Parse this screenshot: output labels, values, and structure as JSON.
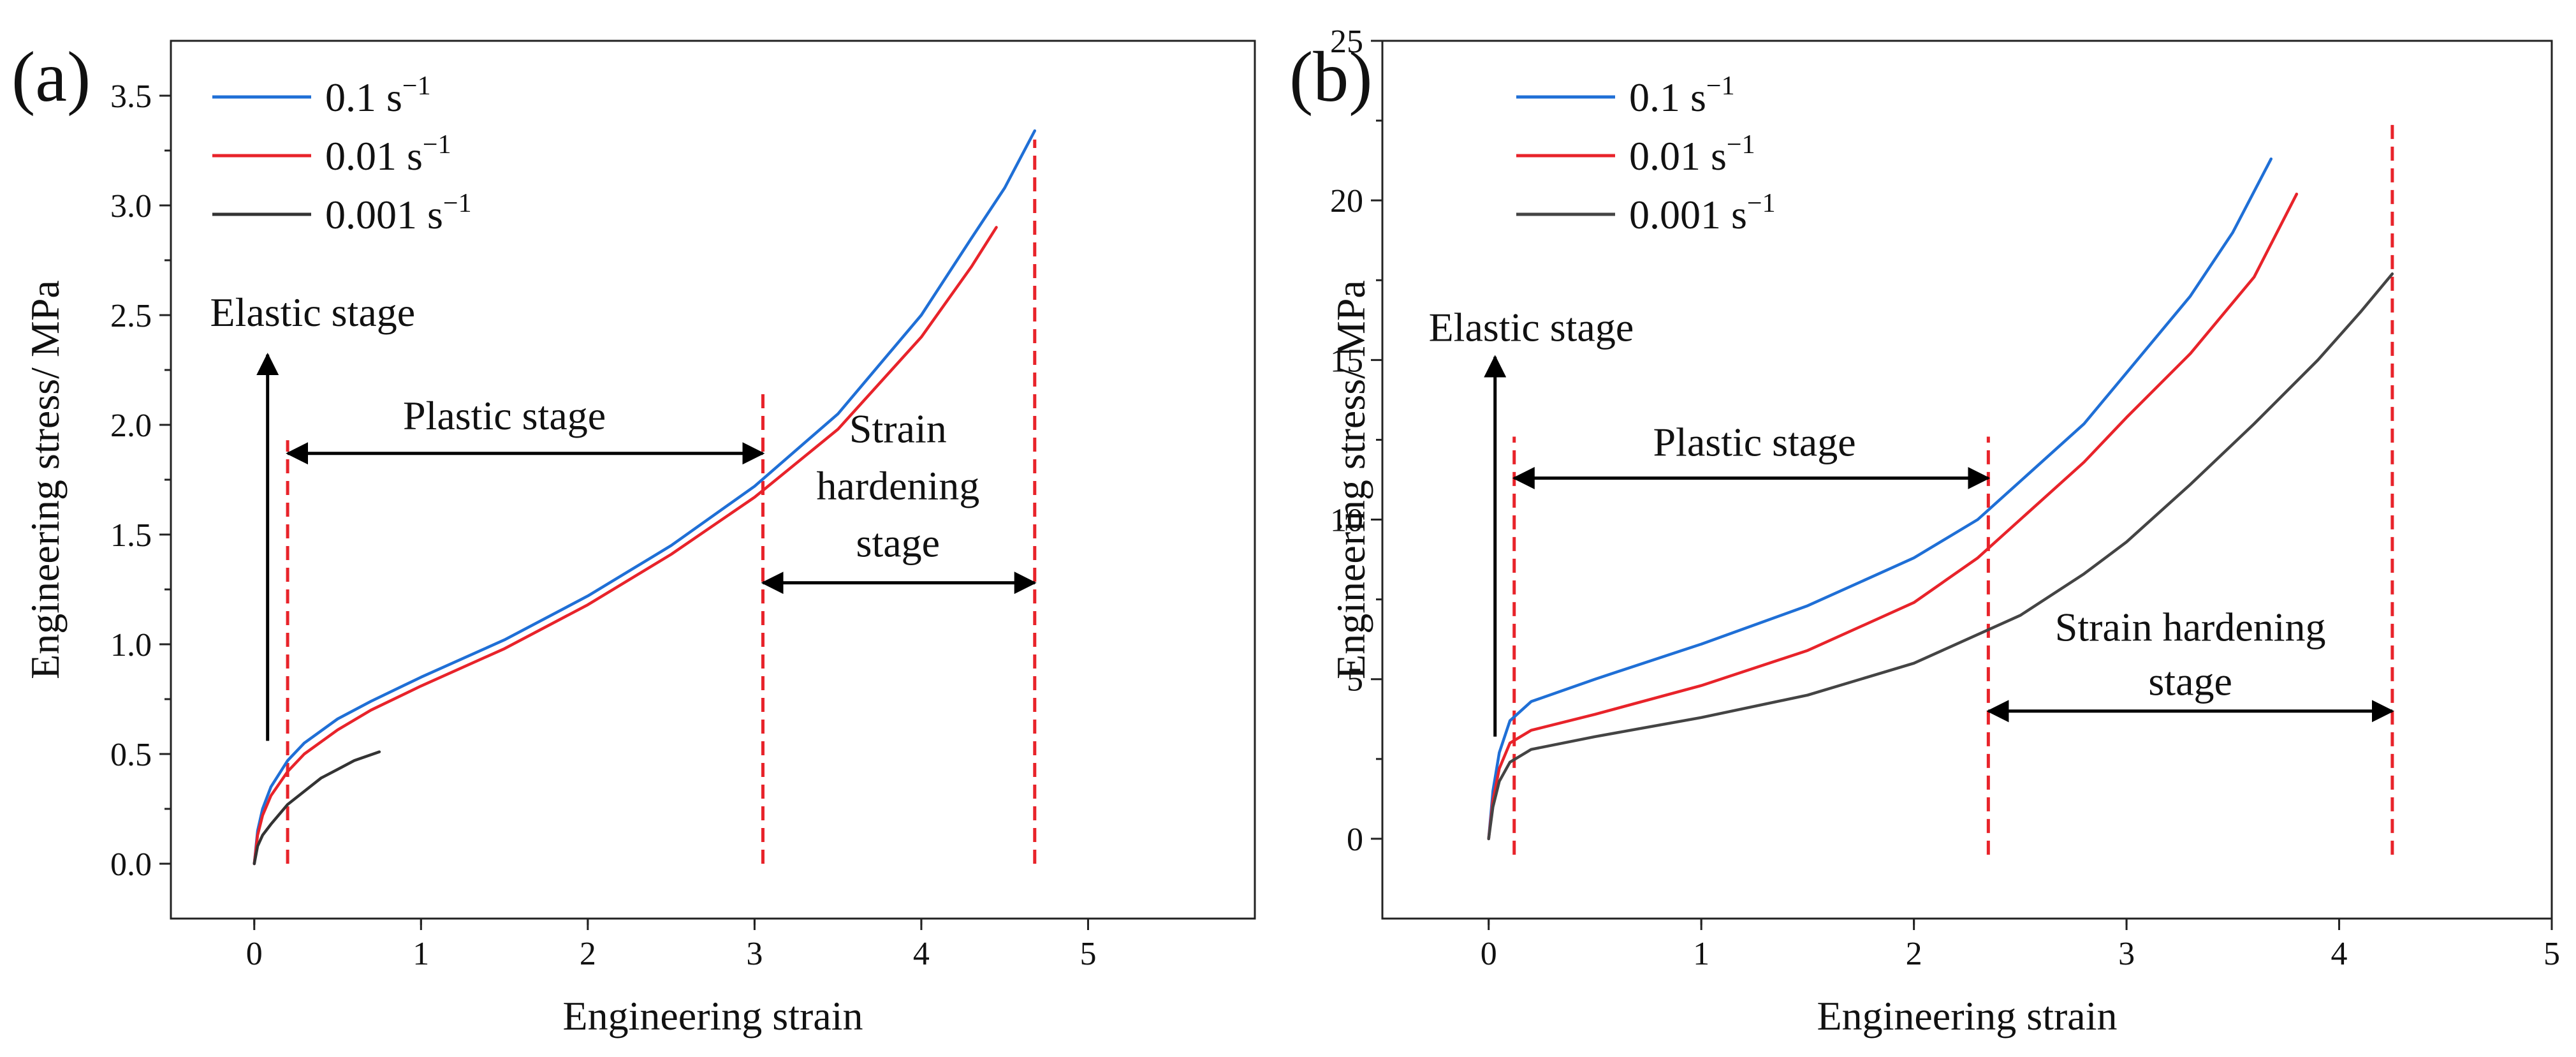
{
  "chart_data": [
    {
      "type": "line",
      "panel_label": "(a)",
      "xlabel": "Engineering strain",
      "ylabel": "Engineering stress/ MPa",
      "xlim": [
        -0.5,
        6
      ],
      "ylim": [
        -0.25,
        3.75
      ],
      "xticks": [
        0,
        1,
        2,
        3,
        4,
        5
      ],
      "xtick_labels": [
        "0",
        "1",
        "2",
        "3",
        "4",
        "5"
      ],
      "yticks": [
        0.0,
        0.5,
        1.0,
        1.5,
        2.0,
        2.5,
        3.0,
        3.5
      ],
      "ytick_labels": [
        "0.0",
        "0.5",
        "1.0",
        "1.5",
        "2.0",
        "2.5",
        "3.0",
        "3.5"
      ],
      "legend_position": "top-left",
      "series": [
        {
          "name": "0.1 s",
          "name_sup": "−1",
          "color": "#1f6fd6",
          "points": [
            [
              0,
              0
            ],
            [
              0.02,
              0.15
            ],
            [
              0.05,
              0.25
            ],
            [
              0.1,
              0.35
            ],
            [
              0.2,
              0.47
            ],
            [
              0.3,
              0.55
            ],
            [
              0.5,
              0.66
            ],
            [
              0.7,
              0.74
            ],
            [
              1.0,
              0.85
            ],
            [
              1.5,
              1.02
            ],
            [
              2.0,
              1.22
            ],
            [
              2.5,
              1.45
            ],
            [
              3.0,
              1.72
            ],
            [
              3.5,
              2.05
            ],
            [
              4.0,
              2.5
            ],
            [
              4.3,
              2.85
            ],
            [
              4.5,
              3.08
            ],
            [
              4.68,
              3.34
            ]
          ]
        },
        {
          "name": "0.01 s",
          "name_sup": "−1",
          "color": "#e8232a",
          "points": [
            [
              0,
              0
            ],
            [
              0.02,
              0.13
            ],
            [
              0.05,
              0.22
            ],
            [
              0.1,
              0.31
            ],
            [
              0.2,
              0.42
            ],
            [
              0.3,
              0.5
            ],
            [
              0.5,
              0.61
            ],
            [
              0.7,
              0.7
            ],
            [
              1.0,
              0.81
            ],
            [
              1.5,
              0.98
            ],
            [
              2.0,
              1.18
            ],
            [
              2.5,
              1.41
            ],
            [
              3.0,
              1.67
            ],
            [
              3.5,
              1.98
            ],
            [
              4.0,
              2.4
            ],
            [
              4.3,
              2.72
            ],
            [
              4.45,
              2.9
            ]
          ]
        },
        {
          "name": "0.001 s",
          "name_sup": "−1",
          "color": "#333333",
          "points": [
            [
              0,
              0
            ],
            [
              0.02,
              0.08
            ],
            [
              0.05,
              0.13
            ],
            [
              0.1,
              0.18
            ],
            [
              0.2,
              0.27
            ],
            [
              0.3,
              0.33
            ],
            [
              0.4,
              0.39
            ],
            [
              0.5,
              0.43
            ],
            [
              0.6,
              0.47
            ],
            [
              0.75,
              0.51
            ]
          ]
        }
      ],
      "vlines": [
        {
          "x": 0.2,
          "ymin": 0.0,
          "ymax": 1.93
        },
        {
          "x": 3.05,
          "ymin": 0.0,
          "ymax": 2.17
        },
        {
          "x": 4.68,
          "ymin": 0.0,
          "ymax": 3.3
        }
      ],
      "arrows": [
        {
          "label": "elastic",
          "from": [
            0.08,
            0.56
          ],
          "to": [
            0.08,
            2.32
          ],
          "heads": "end"
        },
        {
          "label": "plastic",
          "from": [
            0.2,
            1.87
          ],
          "to": [
            3.05,
            1.87
          ],
          "heads": "both"
        },
        {
          "label": "hardening",
          "from": [
            3.05,
            1.28
          ],
          "to": [
            4.68,
            1.28
          ],
          "heads": "both"
        }
      ],
      "annotations": [
        {
          "text": "Elastic stage",
          "x": 0.35,
          "y": 2.45
        },
        {
          "text": "Plastic stage",
          "x": 1.5,
          "y": 1.98
        },
        {
          "text": "Strain",
          "x": 3.86,
          "y": 1.92
        },
        {
          "text": "hardening",
          "x": 3.86,
          "y": 1.66
        },
        {
          "text": "stage",
          "x": 3.86,
          "y": 1.4
        }
      ]
    },
    {
      "type": "line",
      "panel_label": "(b)",
      "xlabel": "Engineering strain",
      "ylabel": "Engineering stress/ MPa",
      "xlim": [
        -0.5,
        5
      ],
      "ylim": [
        -2.5,
        25
      ],
      "xticks": [
        0,
        1,
        2,
        3,
        4,
        5
      ],
      "xtick_labels": [
        "0",
        "1",
        "2",
        "3",
        "4",
        "5"
      ],
      "yticks": [
        0,
        5,
        10,
        15,
        20,
        25
      ],
      "ytick_labels": [
        "0",
        "5",
        "10",
        "15",
        "20",
        "25"
      ],
      "legend_position": "top-left",
      "series": [
        {
          "name": "0.1 s",
          "name_sup": "−1",
          "color": "#1f6fd6",
          "points": [
            [
              0,
              0
            ],
            [
              0.02,
              1.5
            ],
            [
              0.05,
              2.7
            ],
            [
              0.1,
              3.7
            ],
            [
              0.2,
              4.3
            ],
            [
              0.5,
              5.0
            ],
            [
              1.0,
              6.1
            ],
            [
              1.5,
              7.3
            ],
            [
              2.0,
              8.8
            ],
            [
              2.3,
              10.0
            ],
            [
              2.5,
              11.2
            ],
            [
              2.8,
              13.0
            ],
            [
              3.0,
              14.6
            ],
            [
              3.3,
              17.0
            ],
            [
              3.5,
              19.0
            ],
            [
              3.68,
              21.3
            ]
          ]
        },
        {
          "name": "0.01 s",
          "name_sup": "−1",
          "color": "#e8232a",
          "points": [
            [
              0,
              0
            ],
            [
              0.02,
              1.2
            ],
            [
              0.05,
              2.2
            ],
            [
              0.1,
              3.0
            ],
            [
              0.2,
              3.4
            ],
            [
              0.5,
              3.9
            ],
            [
              1.0,
              4.8
            ],
            [
              1.5,
              5.9
            ],
            [
              2.0,
              7.4
            ],
            [
              2.3,
              8.8
            ],
            [
              2.5,
              10.0
            ],
            [
              2.8,
              11.8
            ],
            [
              3.0,
              13.2
            ],
            [
              3.3,
              15.2
            ],
            [
              3.6,
              17.6
            ],
            [
              3.8,
              20.2
            ]
          ]
        },
        {
          "name": "0.001 s",
          "name_sup": "−1",
          "color": "#444444",
          "points": [
            [
              0,
              0
            ],
            [
              0.02,
              1.0
            ],
            [
              0.05,
              1.8
            ],
            [
              0.1,
              2.4
            ],
            [
              0.2,
              2.8
            ],
            [
              0.5,
              3.2
            ],
            [
              1.0,
              3.8
            ],
            [
              1.5,
              4.5
            ],
            [
              2.0,
              5.5
            ],
            [
              2.3,
              6.4
            ],
            [
              2.5,
              7.0
            ],
            [
              2.8,
              8.3
            ],
            [
              3.0,
              9.3
            ],
            [
              3.3,
              11.1
            ],
            [
              3.6,
              13.0
            ],
            [
              3.9,
              15.0
            ],
            [
              4.1,
              16.5
            ],
            [
              4.25,
              17.7
            ]
          ]
        }
      ],
      "vlines": [
        {
          "x": 0.12,
          "ymin": -0.5,
          "ymax": 12.6
        },
        {
          "x": 2.35,
          "ymin": -0.5,
          "ymax": 12.6
        },
        {
          "x": 4.25,
          "ymin": -0.5,
          "ymax": 22.5
        }
      ],
      "arrows": [
        {
          "label": "elastic",
          "from": [
            0.03,
            3.2
          ],
          "to": [
            0.03,
            15.1
          ],
          "heads": "end"
        },
        {
          "label": "plastic",
          "from": [
            0.12,
            11.3
          ],
          "to": [
            2.35,
            11.3
          ],
          "heads": "both"
        },
        {
          "label": "hardening",
          "from": [
            2.35,
            4.0
          ],
          "to": [
            4.25,
            4.0
          ],
          "heads": "both"
        }
      ],
      "annotations": [
        {
          "text": "Elastic stage",
          "x": 0.2,
          "y": 15.6
        },
        {
          "text": "Plastic stage",
          "x": 1.25,
          "y": 12.0
        },
        {
          "text": "Strain hardening",
          "x": 3.3,
          "y": 6.2
        },
        {
          "text": "stage",
          "x": 3.3,
          "y": 4.5
        }
      ]
    }
  ]
}
